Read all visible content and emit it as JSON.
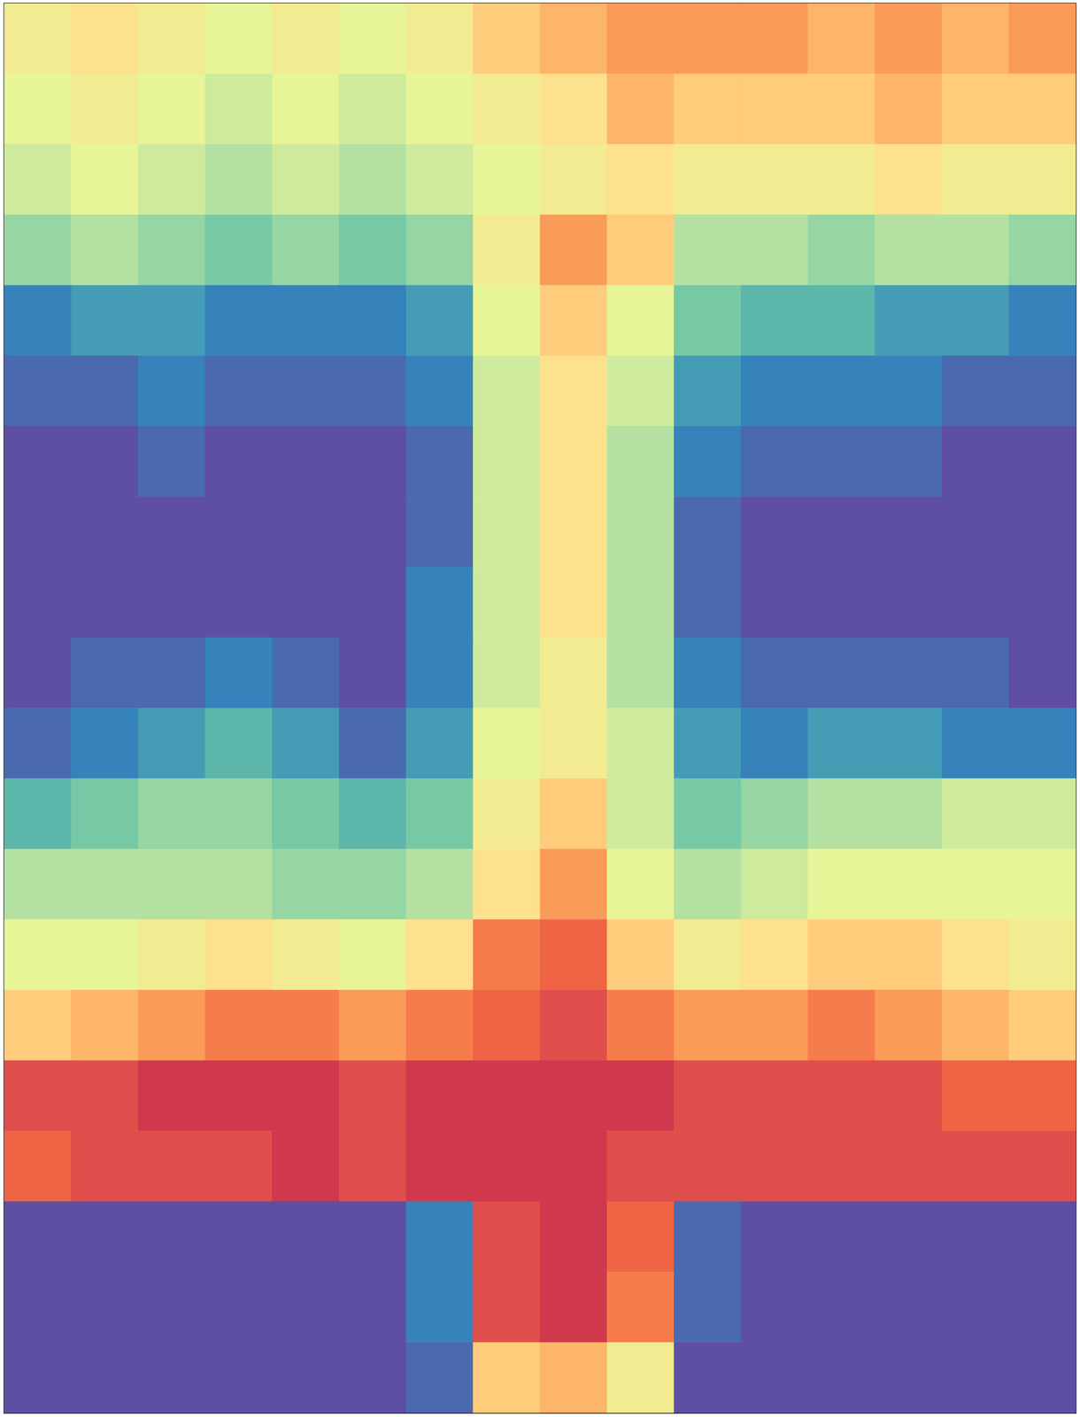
{
  "chart_data": {
    "type": "heatmap",
    "x": [
      0.125,
      0.375,
      0.625,
      0.875,
      1.125,
      1.375,
      1.625,
      1.875,
      2.125,
      2.375,
      2.625,
      2.875,
      3.125,
      3.375,
      3.625,
      3.875
    ],
    "y": [
      3.9,
      3.7,
      3.5,
      3.3,
      3.1,
      2.9,
      2.7,
      2.5,
      2.3,
      2.1,
      1.9,
      1.7,
      1.5,
      1.3,
      1.1,
      0.9,
      0.7,
      0.5,
      0.3,
      0.1
    ],
    "z": [
      [
        0.5,
        0.55,
        0.5,
        0.45,
        0.5,
        0.45,
        0.5,
        0.6,
        0.65,
        0.7,
        0.7,
        0.7,
        0.65,
        0.7,
        0.65,
        0.7
      ],
      [
        0.45,
        0.5,
        0.45,
        0.4,
        0.45,
        0.4,
        0.45,
        0.5,
        0.55,
        0.65,
        0.6,
        0.6,
        0.6,
        0.65,
        0.6,
        0.6
      ],
      [
        0.4,
        0.45,
        0.4,
        0.35,
        0.4,
        0.35,
        0.4,
        0.45,
        0.5,
        0.55,
        0.5,
        0.5,
        0.5,
        0.55,
        0.5,
        0.5
      ],
      [
        0.3,
        0.35,
        0.3,
        0.25,
        0.3,
        0.25,
        0.3,
        0.5,
        0.7,
        0.6,
        0.35,
        0.35,
        0.3,
        0.35,
        0.35,
        0.3
      ],
      [
        0.1,
        0.15,
        0.15,
        0.1,
        0.1,
        0.1,
        0.15,
        0.45,
        0.6,
        0.45,
        0.25,
        0.2,
        0.2,
        0.15,
        0.15,
        0.1
      ],
      [
        0.05,
        0.05,
        0.1,
        0.05,
        0.05,
        0.05,
        0.1,
        0.4,
        0.55,
        0.4,
        0.15,
        0.1,
        0.1,
        0.1,
        0.05,
        0.05
      ],
      [
        0,
        0,
        0.05,
        0,
        0,
        0,
        0.05,
        0.4,
        0.55,
        0.35,
        0.1,
        0.05,
        0.05,
        0.05,
        0,
        0
      ],
      [
        0,
        0,
        0,
        0,
        0,
        0,
        0.05,
        0.4,
        0.55,
        0.35,
        0.05,
        0,
        0,
        0,
        0,
        0
      ],
      [
        0,
        0,
        0,
        0,
        0,
        0,
        0.1,
        0.4,
        0.55,
        0.35,
        0.05,
        0,
        0,
        0,
        0,
        0
      ],
      [
        0,
        0.05,
        0.05,
        0.1,
        0.05,
        0,
        0.1,
        0.4,
        0.5,
        0.35,
        0.1,
        0.05,
        0.05,
        0.05,
        0.05,
        0
      ],
      [
        0.05,
        0.1,
        0.15,
        0.2,
        0.15,
        0.05,
        0.15,
        0.45,
        0.5,
        0.4,
        0.15,
        0.1,
        0.15,
        0.15,
        0.1,
        0.1
      ],
      [
        0.2,
        0.25,
        0.3,
        0.3,
        0.25,
        0.2,
        0.25,
        0.5,
        0.6,
        0.4,
        0.25,
        0.3,
        0.35,
        0.35,
        0.4,
        0.4
      ],
      [
        0.35,
        0.35,
        0.35,
        0.35,
        0.3,
        0.3,
        0.35,
        0.55,
        0.7,
        0.45,
        0.35,
        0.4,
        0.45,
        0.45,
        0.45,
        0.45
      ],
      [
        0.45,
        0.45,
        0.5,
        0.55,
        0.5,
        0.45,
        0.55,
        0.75,
        0.8,
        0.6,
        0.5,
        0.55,
        0.6,
        0.6,
        0.55,
        0.5
      ],
      [
        0.6,
        0.65,
        0.7,
        0.75,
        0.75,
        0.7,
        0.75,
        0.8,
        0.85,
        0.75,
        0.7,
        0.7,
        0.75,
        0.7,
        0.65,
        0.6
      ],
      [
        0.85,
        0.85,
        0.9,
        0.9,
        0.9,
        0.85,
        0.9,
        0.9,
        0.9,
        0.9,
        0.85,
        0.85,
        0.85,
        0.85,
        0.8,
        0.8
      ],
      [
        0.8,
        0.85,
        0.85,
        0.85,
        0.9,
        0.85,
        0.9,
        0.9,
        0.9,
        0.85,
        0.85,
        0.85,
        0.85,
        0.85,
        0.85,
        0.85
      ],
      [
        0,
        0,
        0,
        0,
        0,
        0,
        0.1,
        0.85,
        0.9,
        0.8,
        0.05,
        0,
        0,
        0,
        0,
        0
      ],
      [
        0,
        0,
        0,
        0,
        0,
        0,
        0.1,
        0.85,
        0.9,
        0.75,
        0.05,
        0,
        0,
        0,
        0,
        0
      ],
      [
        0,
        0,
        0,
        0,
        0,
        0,
        0.05,
        0.6,
        0.65,
        0.5,
        0,
        0,
        0,
        0,
        0,
        0
      ]
    ],
    "xlim": [
      0,
      4
    ],
    "ylim": [
      0,
      4
    ],
    "xticks": [
      1,
      2,
      3
    ],
    "yticks": [
      1,
      2,
      3
    ],
    "zlim": [
      0,
      1
    ],
    "tick_labels": false,
    "grid": false
  }
}
